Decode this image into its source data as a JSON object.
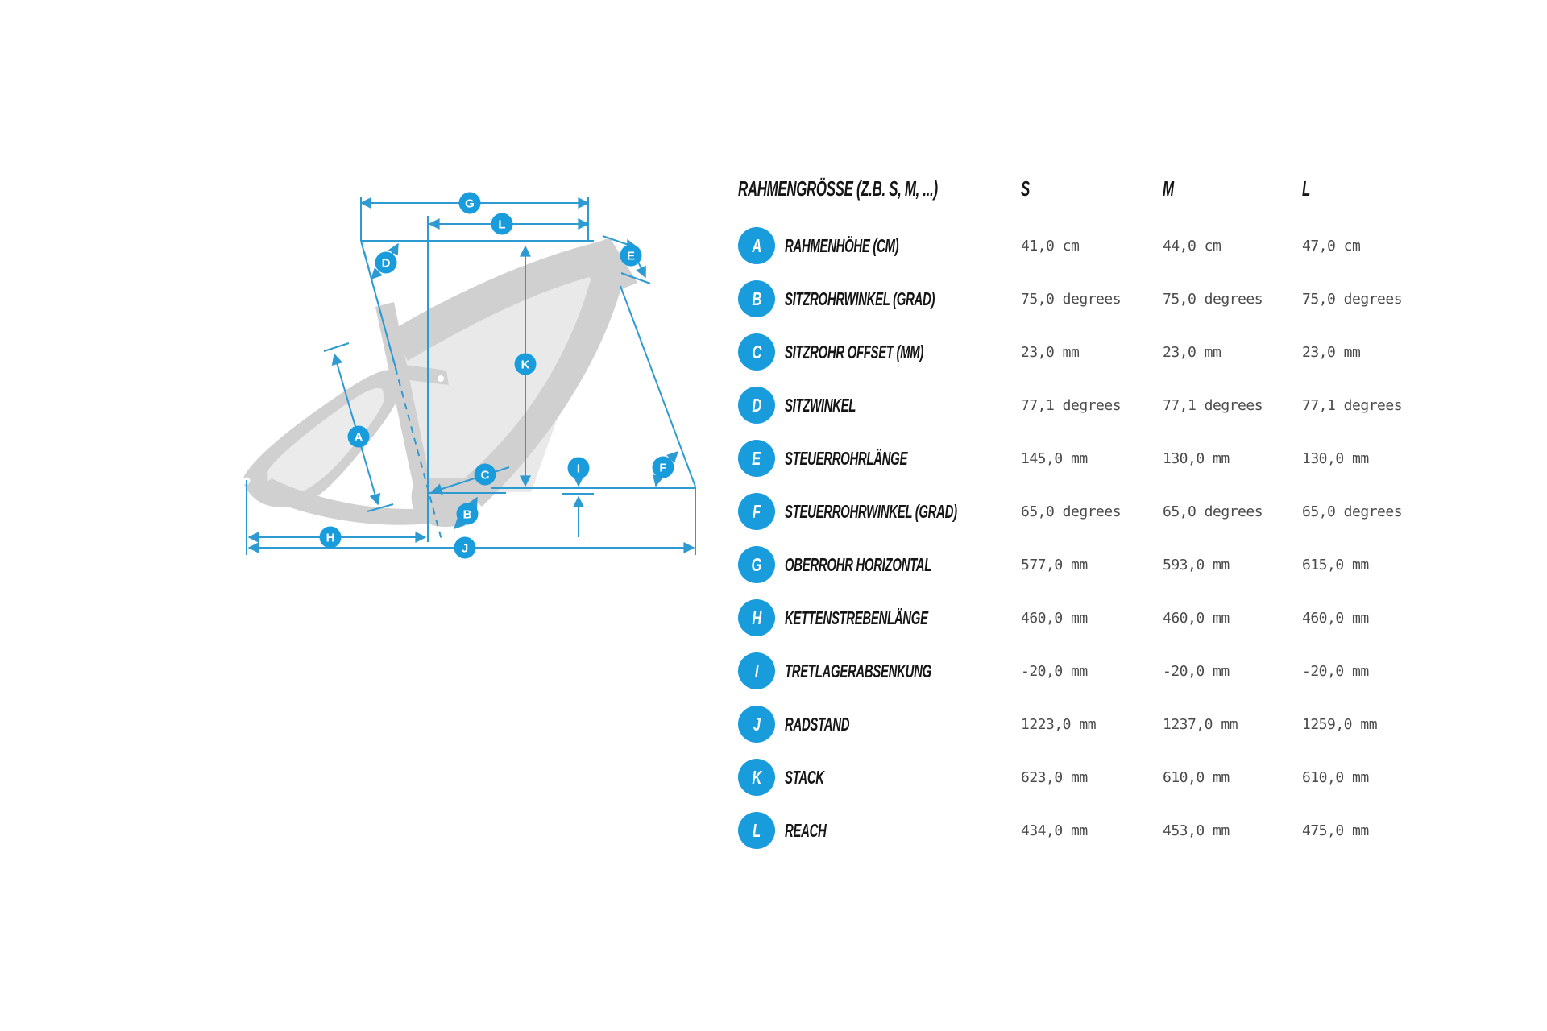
{
  "table": {
    "header": {
      "label": "RAHMENGRÖSSE (Z.B. S, M, ...)",
      "columns": [
        "S",
        "M",
        "L"
      ]
    },
    "rows": [
      {
        "letter": "A",
        "label": "RAHMENHÖHE (CM)",
        "values": [
          "41,0 cm",
          "44,0 cm",
          "47,0 cm"
        ]
      },
      {
        "letter": "B",
        "label": "SITZROHRWINKEL (GRAD)",
        "values": [
          "75,0 degrees",
          "75,0 degrees",
          "75,0 degrees"
        ]
      },
      {
        "letter": "C",
        "label": "SITZROHR OFFSET (MM)",
        "values": [
          "23,0 mm",
          "23,0 mm",
          "23,0 mm"
        ]
      },
      {
        "letter": "D",
        "label": "SITZWINKEL",
        "values": [
          "77,1 degrees",
          "77,1 degrees",
          "77,1 degrees"
        ]
      },
      {
        "letter": "E",
        "label": "STEUERROHRLÄNGE",
        "values": [
          "145,0 mm",
          "130,0 mm",
          "130,0 mm"
        ]
      },
      {
        "letter": "F",
        "label": "STEUERROHRWINKEL (GRAD)",
        "values": [
          "65,0 degrees",
          "65,0 degrees",
          "65,0 degrees"
        ]
      },
      {
        "letter": "G",
        "label": "OBERROHR HORIZONTAL",
        "values": [
          "577,0 mm",
          "593,0 mm",
          "615,0 mm"
        ]
      },
      {
        "letter": "H",
        "label": "KETTENSTREBENLÄNGE",
        "values": [
          "460,0 mm",
          "460,0 mm",
          "460,0 mm"
        ]
      },
      {
        "letter": "I",
        "label": "TRETLAGERABSENKUNG",
        "values": [
          "-20,0 mm",
          "-20,0 mm",
          "-20,0 mm"
        ]
      },
      {
        "letter": "J",
        "label": "RADSTAND",
        "values": [
          "1223,0 mm",
          "1237,0 mm",
          "1259,0 mm"
        ]
      },
      {
        "letter": "K",
        "label": "STACK",
        "values": [
          "623,0 mm",
          "610,0 mm",
          "610,0 mm"
        ]
      },
      {
        "letter": "L",
        "label": "REACH",
        "values": [
          "434,0 mm",
          "453,0 mm",
          "475,0 mm"
        ]
      }
    ]
  },
  "diagram": {
    "badges": [
      "G",
      "L",
      "D",
      "E",
      "A",
      "K",
      "C",
      "B",
      "I",
      "F",
      "H",
      "J"
    ]
  },
  "colors": {
    "accent_line": "#2E9AD2",
    "badge_blue": "#189CDC",
    "frame_gray": "#d0d0d0",
    "frame_light": "#eaeaea",
    "label_text": "#151515",
    "value_text": "#4b4b4b"
  }
}
